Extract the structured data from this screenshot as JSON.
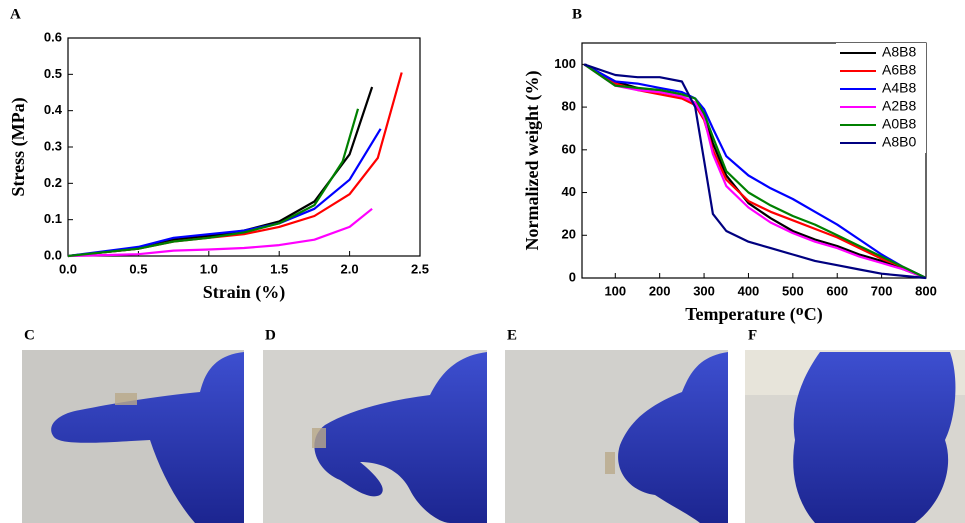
{
  "chart_data": [
    {
      "type": "line",
      "panel_label": "A",
      "x_label": "Strain (%)",
      "y_label": "Stress (MPa)",
      "xlim": [
        0,
        2.5
      ],
      "ylim": [
        0,
        0.6
      ],
      "xticks": [
        {
          "value": 0,
          "label": "0.0"
        },
        0.5,
        {
          "value": 1,
          "label": "1.0"
        },
        1.5,
        {
          "value": 2,
          "label": "2.0"
        },
        2.5
      ],
      "yticks": [
        {
          "value": 0,
          "label": "0.0"
        },
        0.1,
        0.2,
        0.3,
        0.4,
        0.5,
        0.6
      ],
      "series": [
        {
          "color": "#000000",
          "x": [
            0,
            0.5,
            0.75,
            1.0,
            1.25,
            1.5,
            1.75,
            2.0,
            2.16
          ],
          "values": [
            0,
            0.02,
            0.045,
            0.055,
            0.07,
            0.095,
            0.15,
            0.28,
            0.465
          ]
        },
        {
          "color": "#ff0000",
          "x": [
            0,
            0.5,
            0.75,
            1.0,
            1.25,
            1.5,
            1.75,
            2.0,
            2.2,
            2.37
          ],
          "values": [
            0,
            0.02,
            0.04,
            0.05,
            0.06,
            0.08,
            0.11,
            0.17,
            0.27,
            0.505
          ]
        },
        {
          "color": "#0000ff",
          "x": [
            0,
            0.5,
            0.75,
            1.0,
            1.25,
            1.5,
            1.75,
            2.0,
            2.22
          ],
          "values": [
            0,
            0.025,
            0.05,
            0.06,
            0.07,
            0.09,
            0.13,
            0.21,
            0.35
          ]
        },
        {
          "color": "#ff00ff",
          "x": [
            0,
            0.5,
            0.75,
            1.0,
            1.25,
            1.5,
            1.75,
            2.0,
            2.16
          ],
          "values": [
            0,
            0.005,
            0.015,
            0.018,
            0.022,
            0.03,
            0.045,
            0.08,
            0.13
          ]
        },
        {
          "color": "#008000",
          "x": [
            0,
            0.5,
            0.75,
            1.0,
            1.25,
            1.5,
            1.75,
            1.95,
            2.06
          ],
          "values": [
            0,
            0.02,
            0.04,
            0.05,
            0.065,
            0.09,
            0.14,
            0.26,
            0.405
          ]
        }
      ]
    },
    {
      "type": "line",
      "panel_label": "B",
      "x_label": "Temperature (ᴼC)",
      "y_label": "Normalized weight (%)",
      "xlim": [
        25,
        800
      ],
      "ylim": [
        0,
        110
      ],
      "xticks": [
        100,
        200,
        300,
        400,
        500,
        600,
        700,
        800
      ],
      "yticks": [
        0,
        20,
        40,
        60,
        80,
        100
      ],
      "legend": "upper right",
      "x": [
        30,
        100,
        150,
        200,
        250,
        280,
        300,
        320,
        350,
        400,
        450,
        500,
        550,
        600,
        650,
        700,
        750,
        800
      ],
      "series": [
        {
          "name": "A8B8",
          "color": "#000000",
          "values": [
            100,
            92,
            89,
            87,
            85,
            82,
            76,
            63,
            48,
            35,
            28,
            22,
            18,
            15,
            11,
            8,
            4,
            0
          ]
        },
        {
          "name": "A6B8",
          "color": "#ff0000",
          "values": [
            100,
            91,
            88,
            86,
            84,
            81,
            74,
            60,
            46,
            36,
            31,
            27,
            23,
            19,
            14,
            9,
            5,
            0
          ]
        },
        {
          "name": "A4B8",
          "color": "#0000ff",
          "values": [
            100,
            92,
            91,
            89,
            87,
            84,
            79,
            70,
            57,
            48,
            42,
            37,
            31,
            25,
            18,
            11,
            5,
            0
          ]
        },
        {
          "name": "A2B8",
          "color": "#ff00ff",
          "values": [
            100,
            90,
            88,
            87,
            85,
            82,
            75,
            58,
            43,
            33,
            26,
            21,
            17,
            14,
            10,
            7,
            4,
            0
          ]
        },
        {
          "name": "A0B8",
          "color": "#008000",
          "values": [
            100,
            90,
            89,
            88,
            86,
            84,
            77,
            66,
            50,
            40,
            34,
            29,
            25,
            20,
            15,
            10,
            5,
            0
          ]
        },
        {
          "name": "A8B0",
          "color": "#000080",
          "values": [
            100,
            95,
            94,
            94,
            92,
            80,
            55,
            30,
            22,
            17,
            14,
            11,
            8,
            6,
            4,
            2,
            1,
            0
          ]
        }
      ]
    }
  ],
  "photos": [
    {
      "label": "C"
    },
    {
      "label": "D"
    },
    {
      "label": "E"
    },
    {
      "label": "F"
    }
  ]
}
